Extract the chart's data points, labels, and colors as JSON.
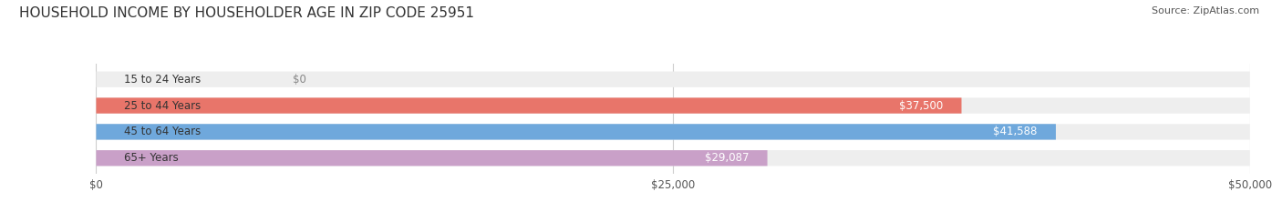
{
  "title": "HOUSEHOLD INCOME BY HOUSEHOLDER AGE IN ZIP CODE 25951",
  "source": "Source: ZipAtlas.com",
  "categories": [
    "15 to 24 Years",
    "25 to 44 Years",
    "45 to 64 Years",
    "65+ Years"
  ],
  "values": [
    0,
    37500,
    41588,
    29087
  ],
  "max_value": 50000,
  "bar_colors": [
    "#f0c896",
    "#e8756a",
    "#6fa8dc",
    "#c9a0c8"
  ],
  "bar_bg_color": "#eeeeee",
  "label_colors": [
    "#888888",
    "#ffffff",
    "#ffffff",
    "#ffffff"
  ],
  "value_labels": [
    "$0",
    "$37,500",
    "$41,588",
    "$29,087"
  ],
  "x_ticks": [
    0,
    25000,
    50000
  ],
  "x_tick_labels": [
    "$0",
    "$25,000",
    "$50,000"
  ],
  "background_color": "#ffffff",
  "title_fontsize": 11,
  "bar_height": 0.6,
  "figsize": [
    14.06,
    2.33
  ]
}
